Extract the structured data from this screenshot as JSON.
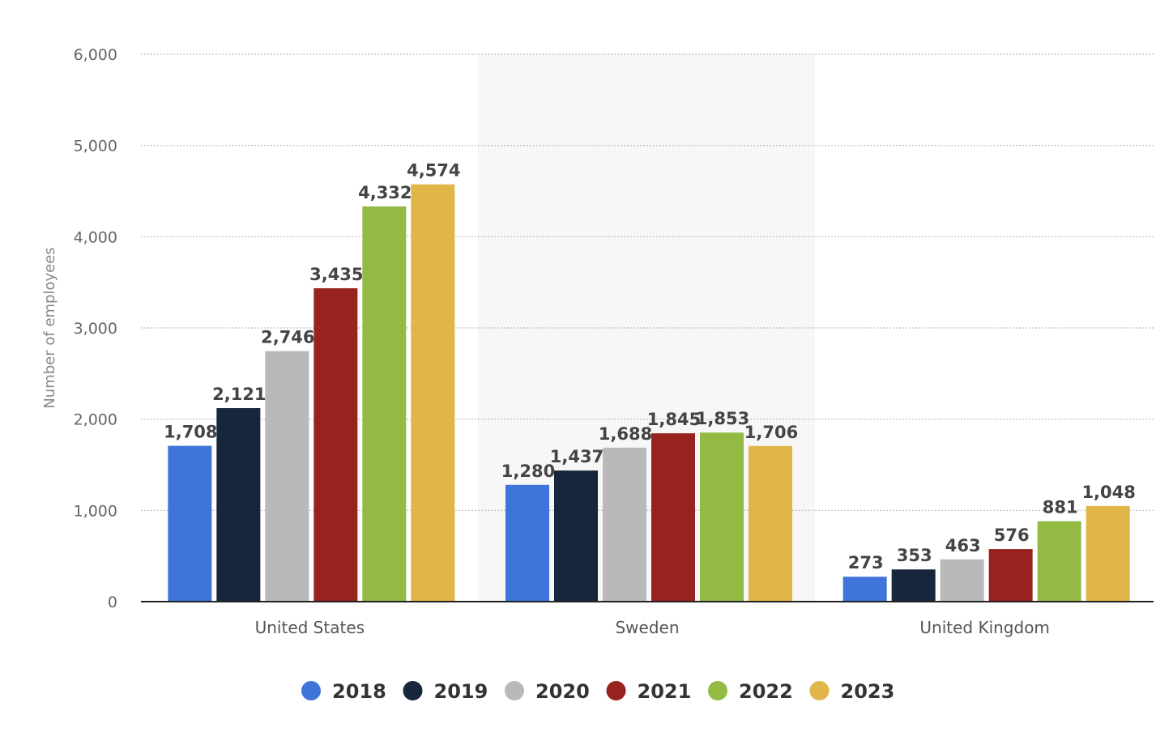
{
  "chart_data": {
    "type": "bar",
    "categories": [
      "United States",
      "Sweden",
      "United Kingdom"
    ],
    "series": [
      {
        "name": "2018",
        "color": "#3f74d9",
        "values": [
          1708,
          1280,
          273
        ]
      },
      {
        "name": "2019",
        "color": "#17263d",
        "values": [
          2121,
          1437,
          353
        ]
      },
      {
        "name": "2020",
        "color": "#b9b9b9",
        "values": [
          2746,
          1688,
          463
        ]
      },
      {
        "name": "2021",
        "color": "#98221d",
        "values": [
          3435,
          1845,
          576
        ]
      },
      {
        "name": "2022",
        "color": "#93bb44",
        "values": [
          4332,
          1853,
          881
        ]
      },
      {
        "name": "2023",
        "color": "#e1b648",
        "values": [
          4574,
          1706,
          1048
        ]
      }
    ],
    "data_labels": [
      [
        "1,708",
        "1,280",
        "273"
      ],
      [
        "2,121",
        "1,437",
        "353"
      ],
      [
        "2,746",
        "1,688",
        "463"
      ],
      [
        "3,435",
        "1,845",
        "576"
      ],
      [
        "4,332",
        "1,853",
        "881"
      ],
      [
        "4,574",
        "1,706",
        "1,048"
      ]
    ],
    "ylabel": "Number of employees",
    "xlabel": "",
    "ylim": [
      0,
      6000
    ],
    "yticks": [
      0,
      1000,
      2000,
      3000,
      4000,
      5000,
      6000
    ],
    "ytick_labels": [
      "0",
      "1,000",
      "2,000",
      "3,000",
      "4,000",
      "5,000",
      "6,000"
    ],
    "grid": true,
    "legend_position": "bottom"
  }
}
